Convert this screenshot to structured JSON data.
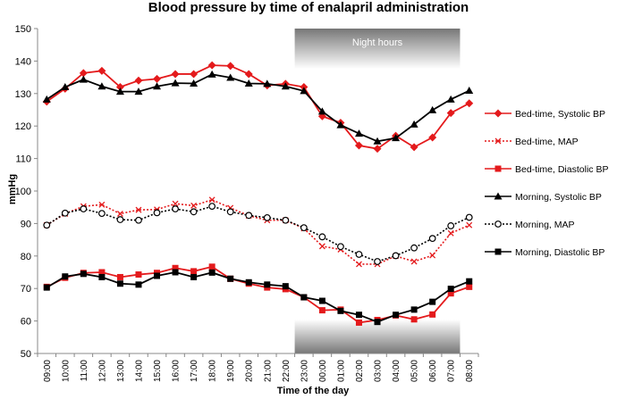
{
  "chart_data": {
    "type": "line",
    "title": "Blood pressure by time of enalapril administration",
    "xlabel": "Time of the day",
    "ylabel": "mmHg",
    "ylim": [
      50,
      150
    ],
    "yticks": [
      50,
      60,
      70,
      80,
      90,
      100,
      110,
      120,
      130,
      140,
      150
    ],
    "grid": false,
    "legend_position": "right",
    "shaded_region": {
      "label": "Night hours",
      "from": "23:00",
      "to": "07:00"
    },
    "categories": [
      "09:00",
      "10:00",
      "11:00",
      "12:00",
      "13:00",
      "14:00",
      "15:00",
      "16:00",
      "17:00",
      "18:00",
      "19:00",
      "20:00",
      "21:00",
      "22:00",
      "23:00",
      "00:00",
      "01:00",
      "02:00",
      "03:00",
      "04:00",
      "05:00",
      "06:00",
      "07:00",
      "08:00"
    ],
    "series": [
      {
        "name": "Bed-time, Systolic BP",
        "color": "#e41a1c",
        "dash": "solid",
        "marker": "diamond",
        "values": [
          127.5,
          131.5,
          136.3,
          137.0,
          132.0,
          134.0,
          134.5,
          136.0,
          136.0,
          138.7,
          138.5,
          136.0,
          132.5,
          133.0,
          132.0,
          123.0,
          121.0,
          114.0,
          113.0,
          117.0,
          113.5,
          116.5,
          124.0,
          127.0
        ]
      },
      {
        "name": "Bed-time, MAP",
        "color": "#e41a1c",
        "dash": "dotted",
        "marker": "cross",
        "values": [
          89.5,
          93.0,
          95.3,
          95.8,
          93.0,
          94.2,
          94.3,
          96.1,
          95.5,
          97.3,
          94.8,
          92.4,
          91.0,
          91.0,
          88.5,
          83.0,
          82.0,
          77.5,
          77.5,
          80.0,
          78.3,
          80.2,
          87.0,
          89.5
        ]
      },
      {
        "name": "Bed-time, Diastolic BP",
        "color": "#e41a1c",
        "dash": "solid",
        "marker": "square",
        "values": [
          70.5,
          73.3,
          74.8,
          75.0,
          73.5,
          74.3,
          74.8,
          76.3,
          75.3,
          76.7,
          73.0,
          71.5,
          70.3,
          69.8,
          67.3,
          63.3,
          63.5,
          59.5,
          60.3,
          61.7,
          60.5,
          62.0,
          68.5,
          70.5
        ]
      },
      {
        "name": "Morning, Systolic BP",
        "color": "#000000",
        "dash": "solid",
        "marker": "triangle",
        "values": [
          128.2,
          132.0,
          134.3,
          132.2,
          130.6,
          130.6,
          132.2,
          133.2,
          133.1,
          135.9,
          134.9,
          133.1,
          133.0,
          132.2,
          130.8,
          124.5,
          120.3,
          117.7,
          115.3,
          116.3,
          120.5,
          124.9,
          128.2,
          130.9
        ]
      },
      {
        "name": "Morning, MAP",
        "color": "#000000",
        "dash": "dotted",
        "marker": "circle",
        "values": [
          89.5,
          93.2,
          94.5,
          93.1,
          91.2,
          91.0,
          93.3,
          94.5,
          93.6,
          95.3,
          93.6,
          92.5,
          91.8,
          91.0,
          88.7,
          85.9,
          82.9,
          80.5,
          78.3,
          80.1,
          82.5,
          85.4,
          89.3,
          91.9
        ]
      },
      {
        "name": "Morning, Diastolic BP",
        "color": "#000000",
        "dash": "solid",
        "marker": "square",
        "values": [
          70.3,
          73.7,
          74.5,
          73.5,
          71.5,
          71.2,
          73.9,
          75.0,
          73.5,
          74.9,
          73.0,
          71.9,
          71.2,
          70.7,
          67.3,
          66.2,
          63.1,
          61.9,
          59.7,
          61.9,
          63.5,
          65.9,
          69.9,
          72.2
        ]
      }
    ]
  }
}
